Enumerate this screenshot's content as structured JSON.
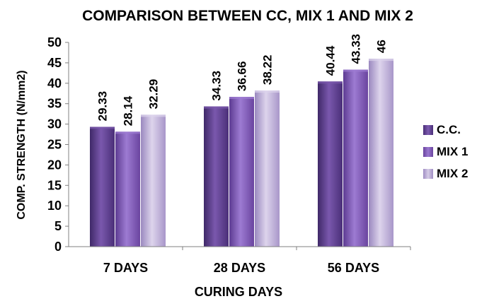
{
  "chart_data": {
    "type": "bar",
    "title": "COMPARISON BETWEEN CC, MIX 1 AND MIX 2",
    "xlabel": "CURING DAYS",
    "ylabel": "COMP. STRENGTH (N/mm2)",
    "categories": [
      "7 DAYS",
      "28 DAYS",
      "56 DAYS"
    ],
    "yticks": [
      "0",
      "5",
      "10",
      "15",
      "20",
      "25",
      "30",
      "35",
      "40",
      "45",
      "50"
    ],
    "ylim": [
      0,
      50
    ],
    "grid": false,
    "legend_position": "right",
    "series": [
      {
        "name": "C.C.",
        "values": [
          29.33,
          34.33,
          40.44
        ],
        "labels": [
          "29.33",
          "34.33",
          "40.44"
        ],
        "color": "#5e3d91"
      },
      {
        "name": "MIX 1",
        "values": [
          28.14,
          36.66,
          43.33
        ],
        "labels": [
          "28.14",
          "36.66",
          "43.33"
        ],
        "color": "#7e55b8"
      },
      {
        "name": "MIX 2",
        "values": [
          32.29,
          38.22,
          46
        ],
        "labels": [
          "32.29",
          "38.22",
          "46"
        ],
        "color": "#b6a6d2"
      }
    ]
  }
}
